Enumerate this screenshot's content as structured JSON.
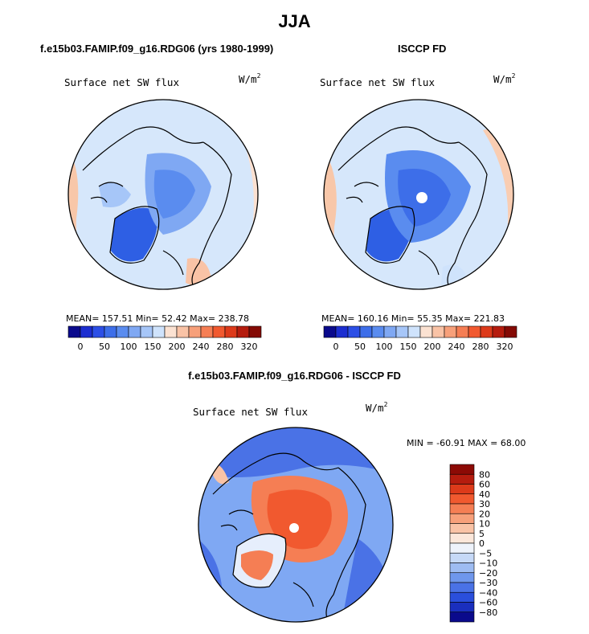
{
  "figure": {
    "season": "JJA",
    "left_title": "f.e15b03.FAMIP.f09_g16.RDG06 (yrs 1980-1999)",
    "right_title": "ISCCP FD",
    "diff_title": "f.e15b03.FAMIP.f09_g16.RDG06 - ISCCP FD"
  },
  "panels": {
    "model": {
      "label": "Surface net SW flux",
      "units": "W/m",
      "units_exp": "2",
      "stats": "MEAN= 157.51  Min=  52.42  Max= 238.78"
    },
    "obs": {
      "label": "Surface net SW flux",
      "units": "W/m",
      "units_exp": "2",
      "stats": "MEAN= 160.16  Min=  55.35  Max= 221.83"
    },
    "diff": {
      "label": "Surface net SW flux",
      "units": "W/m",
      "units_exp": "2",
      "minmax": "MIN = -60.91 MAX =  68.00"
    }
  },
  "chart_data": [
    {
      "type": "heatmap",
      "projection": "north-polar-stereographic",
      "title": "Surface net SW flux",
      "subtitle": "f.e15b03.FAMIP.f09_g16.RDG06 (yrs 1980-1999)",
      "units": "W/m2",
      "mean": 157.51,
      "min": 52.42,
      "max": 238.78,
      "colorbar_ticks": [
        "0",
        "50",
        "100",
        "150",
        "200",
        "240",
        "280",
        "320"
      ],
      "colorbar_colors": [
        "#0a0a8c",
        "#1c2ed0",
        "#2c4fe6",
        "#3d6ee9",
        "#5a8cef",
        "#7fa8f3",
        "#a6c6f8",
        "#cfe3fc",
        "#fbe2d2",
        "#f9c3a6",
        "#f7a07a",
        "#f57e54",
        "#f1592f",
        "#dd3a1a",
        "#b51c0e",
        "#840a05"
      ],
      "colorbar_placement": "bottom"
    },
    {
      "type": "heatmap",
      "projection": "north-polar-stereographic",
      "title": "Surface net SW flux",
      "subtitle": "ISCCP FD",
      "units": "W/m2",
      "mean": 160.16,
      "min": 55.35,
      "max": 221.83,
      "colorbar_ticks": [
        "0",
        "50",
        "100",
        "150",
        "200",
        "240",
        "280",
        "320"
      ],
      "colorbar_colors": [
        "#0a0a8c",
        "#1c2ed0",
        "#2c4fe6",
        "#3d6ee9",
        "#5a8cef",
        "#7fa8f3",
        "#a6c6f8",
        "#cfe3fc",
        "#fbe2d2",
        "#f9c3a6",
        "#f7a07a",
        "#f57e54",
        "#f1592f",
        "#dd3a1a",
        "#b51c0e",
        "#840a05"
      ],
      "colorbar_placement": "bottom"
    },
    {
      "type": "heatmap",
      "projection": "north-polar-stereographic",
      "title": "Surface net SW flux",
      "subtitle": "f.e15b03.FAMIP.f09_g16.RDG06 - ISCCP FD",
      "units": "W/m2",
      "min": -60.91,
      "max": 68.0,
      "colorbar_ticks": [
        "80",
        "60",
        "40",
        "30",
        "20",
        "10",
        "5",
        "0",
        "-5",
        "-10",
        "-20",
        "-30",
        "-40",
        "-60",
        "-80"
      ],
      "colorbar_colors": [
        "#8c0a05",
        "#b51c0e",
        "#dd3a1a",
        "#f1592f",
        "#f57e54",
        "#f7a07a",
        "#f9c3a6",
        "#fbe7da",
        "#eef3fb",
        "#c6d9f7",
        "#9ebcf2",
        "#6f97ec",
        "#4a72e6",
        "#2a4fdc",
        "#1a2fbe",
        "#0a0a8c"
      ],
      "colorbar_placement": "right"
    }
  ]
}
